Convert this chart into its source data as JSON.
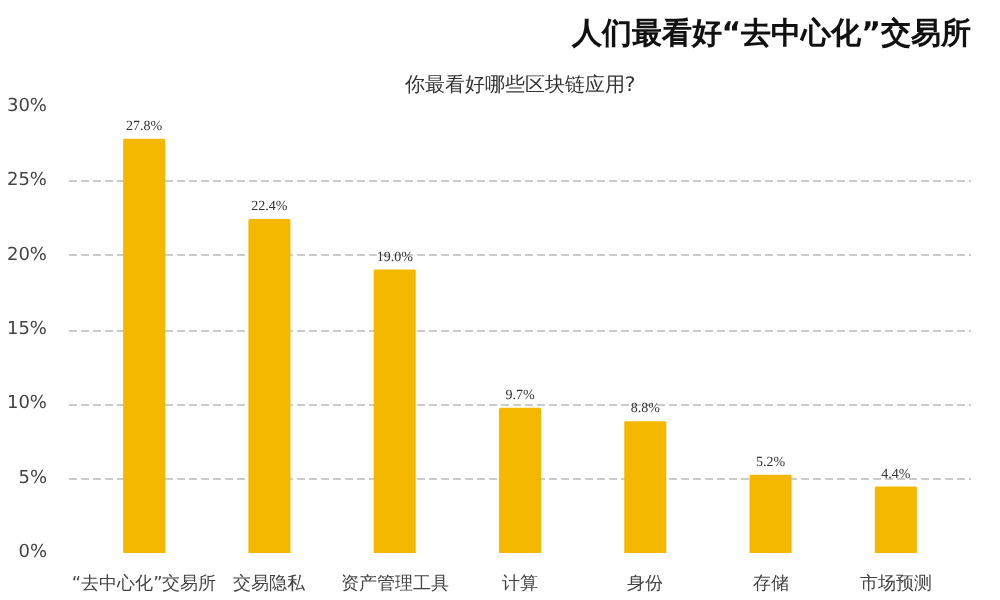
{
  "chart_data": {
    "type": "bar",
    "title": "人们最看好“去中心化”交易所",
    "subtitle": "你最看好哪些区块链应用?",
    "categories": [
      "“去中心化”交易所",
      "交易隐私",
      "资产管理工具",
      "计算",
      "身份",
      "存储",
      "市场预测"
    ],
    "values": [
      27.8,
      22.4,
      19.0,
      9.7,
      8.8,
      5.2,
      4.4
    ],
    "value_labels": [
      "27.8%",
      "22.4%",
      "19.0%",
      "9.7%",
      "8.8%",
      "5.2%",
      "4.4%"
    ],
    "color": "#f5b800",
    "ylim": [
      0,
      30
    ],
    "yticks": [
      {
        "value": 0,
        "label": "0%"
      },
      {
        "value": 5,
        "label": "5%"
      },
      {
        "value": 10,
        "label": "10%"
      },
      {
        "value": 15,
        "label": "15%"
      },
      {
        "value": 20,
        "label": "20%"
      },
      {
        "value": 25,
        "label": "25%"
      },
      {
        "value": 30,
        "label": "30%"
      }
    ],
    "grid": "y"
  }
}
